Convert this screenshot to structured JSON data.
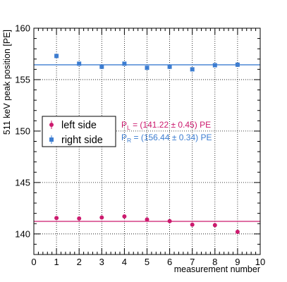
{
  "chart_data": {
    "type": "scatter",
    "xlabel": "measurement number",
    "ylabel": "511 keV peak position [PE]",
    "xlim": [
      0,
      10
    ],
    "ylim": [
      138,
      160
    ],
    "x_ticks": [
      "0",
      "1",
      "2",
      "3",
      "4",
      "5",
      "6",
      "7",
      "8",
      "9",
      "10"
    ],
    "y_ticks": [
      "140",
      "145",
      "150",
      "155",
      "160"
    ],
    "grid": true,
    "legend_position": "middle-left",
    "series": [
      {
        "name": "left side",
        "color": "#cc1a6e",
        "marker": "circle",
        "x": [
          1,
          2,
          3,
          4,
          5,
          6,
          7,
          8,
          9
        ],
        "y": [
          141.55,
          141.5,
          141.6,
          141.7,
          141.4,
          141.25,
          140.9,
          140.85,
          140.2
        ],
        "err": [
          0.15,
          0.15,
          0.15,
          0.15,
          0.15,
          0.15,
          0.15,
          0.15,
          0.15
        ],
        "fit_value": 141.22,
        "fit_label": {
          "prefix": "P",
          "sub": "L",
          "text": " = (141.22 ± 0.45) PE"
        }
      },
      {
        "name": "right side",
        "color": "#3d7dd1",
        "marker": "square",
        "x": [
          1,
          2,
          3,
          4,
          5,
          6,
          7,
          8,
          9
        ],
        "y": [
          157.3,
          156.55,
          156.25,
          156.55,
          156.15,
          156.25,
          156.0,
          156.4,
          156.45
        ],
        "err": [
          0.15,
          0.15,
          0.15,
          0.15,
          0.15,
          0.15,
          0.15,
          0.15,
          0.15
        ],
        "fit_value": 156.44,
        "fit_label": {
          "prefix": "P",
          "sub": "R",
          "text": " = (156.44 ± 0.34) PE"
        }
      }
    ]
  }
}
